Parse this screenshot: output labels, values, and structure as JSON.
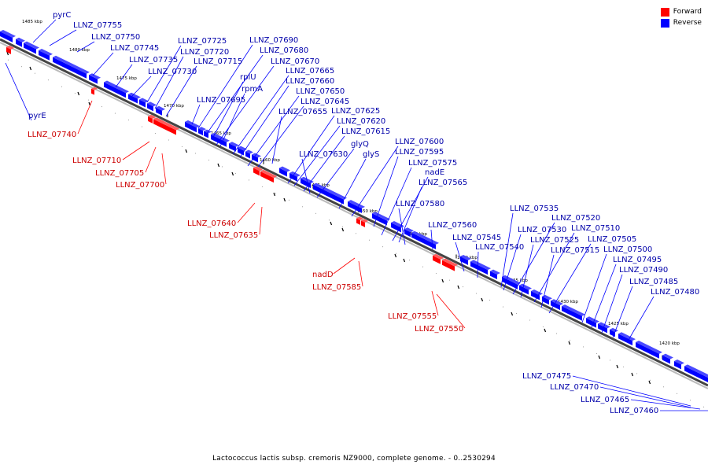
{
  "legend": {
    "forward": {
      "label": "Forward",
      "color": "#ff0000"
    },
    "reverse": {
      "label": "Reverse",
      "color": "#0000ff"
    }
  },
  "caption": "Lactococcus lactis subsp. cremoris NZ9000, complete genome. - 0..2530294",
  "ticks": [
    "1485 kbp",
    "1480 kbp",
    "1475 kbp",
    "1470 kbp",
    "1465 kbp",
    "1460 kbp",
    "1455 kbp",
    "1450 kbp",
    "1445 kbp",
    "1440 kbp",
    "1435 kbp",
    "1430 kbp",
    "1425 kbp",
    "1420 kbp"
  ],
  "reverse_labels": [
    "pyrC",
    "LLNZ_07755",
    "LLNZ_07750",
    "LLNZ_07745",
    "LLNZ_07735",
    "LLNZ_07730",
    "LLNZ_07725",
    "LLNZ_07720",
    "LLNZ_07715",
    "LLNZ_07695",
    "LLNZ_07690",
    "LLNZ_07680",
    "LLNZ_07670",
    "rplU",
    "rpmA",
    "LLNZ_07665",
    "LLNZ_07660",
    "LLNZ_07650",
    "LLNZ_07645",
    "LLNZ_07655",
    "LLNZ_07625",
    "LLNZ_07620",
    "LLNZ_07615",
    "LLNZ_07630",
    "glyQ",
    "glyS",
    "LLNZ_07600",
    "LLNZ_07595",
    "LLNZ_07575",
    "nadE",
    "LLNZ_07565",
    "LLNZ_07580",
    "LLNZ_07560",
    "LLNZ_07545",
    "LLNZ_07540",
    "LLNZ_07535",
    "LLNZ_07520",
    "LLNZ_07530",
    "LLNZ_07510",
    "LLNZ_07525",
    "LLNZ_07505",
    "LLNZ_07515",
    "LLNZ_07500",
    "LLNZ_07495",
    "LLNZ_07490",
    "LLNZ_07485",
    "LLNZ_07480",
    "pyrE",
    "LLNZ_07475",
    "LLNZ_07470",
    "LLNZ_07465",
    "LLNZ_07460"
  ],
  "forward_labels": [
    "LLNZ_07740",
    "LLNZ_07710",
    "LLNZ_07705",
    "LLNZ_07700",
    "LLNZ_07640",
    "LLNZ_07635",
    "nadD",
    "LLNZ_07585",
    "LLNZ_07555",
    "LLNZ_07550"
  ]
}
